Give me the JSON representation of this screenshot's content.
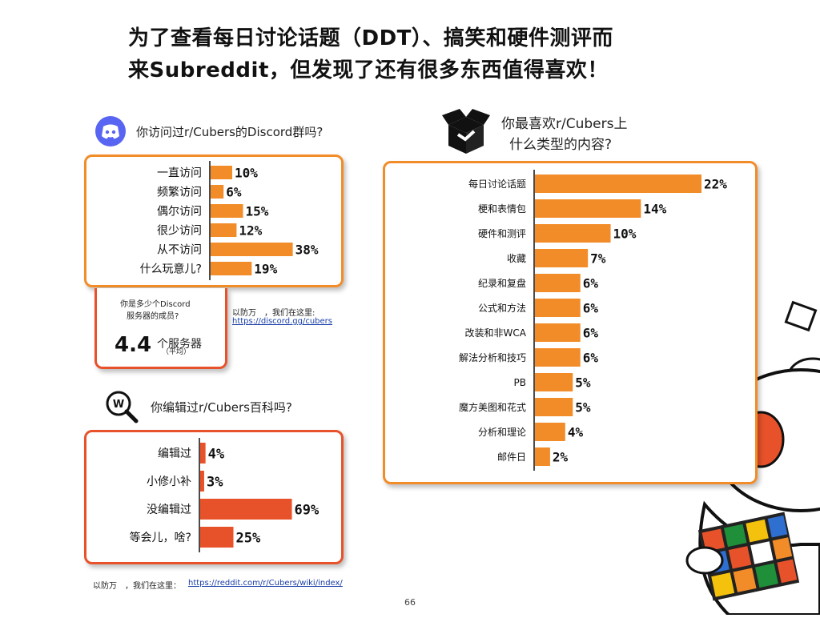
{
  "title": {
    "line1": "为了查看每日讨论话题（DDT）、搞笑和硬件测评而",
    "line2": "来Subreddit，但发现了还有很多东西值得喜欢！"
  },
  "discord": {
    "question": "你访问过r/Cubers的Discord群吗?",
    "servers_question_l1": "你是多少个Discord",
    "servers_question_l2": "服务器的成员?",
    "servers_value": "4.4",
    "servers_unit": "个服务器",
    "servers_note": "（平均）",
    "link_prefix": "以防万　，我们在这里:",
    "link": "https://discord.gg/cubers"
  },
  "wiki": {
    "question": "你编辑过r/Cubers百科吗?",
    "link_prefix": "以防万　，我们在这里：",
    "link": "https://reddit.com/r/Cubers/wiki/index/"
  },
  "content": {
    "question_l1": "你最喜欢r/Cubers上",
    "question_l2": "什么类型的内容?"
  },
  "page_number": "66",
  "colors": {
    "orange": "#f28c28",
    "red": "#e8522a"
  },
  "icons": [
    "discord-icon",
    "wiki-search-icon",
    "box-icon",
    "reddit-mascot-icon"
  ],
  "chart_data": [
    {
      "type": "bar",
      "orientation": "horizontal",
      "categories": [
        "一直访问",
        "频繁访问",
        "偶尔访问",
        "很少访问",
        "从不访问",
        "什么玩意儿?"
      ],
      "values": [
        10,
        6,
        15,
        12,
        38,
        19
      ],
      "labels": [
        "10%",
        "6%",
        "15%",
        "12%",
        "38%",
        "19%"
      ],
      "xlim": [
        0,
        40
      ]
    },
    {
      "type": "bar",
      "orientation": "horizontal",
      "categories": [
        "编辑过",
        "小修小补",
        "没编辑过",
        "等会儿，啥?"
      ],
      "values": [
        4,
        3,
        69,
        25
      ],
      "labels": [
        "4%",
        "3%",
        "69%",
        "25%"
      ],
      "xlim": [
        0,
        100
      ]
    },
    {
      "type": "bar",
      "orientation": "horizontal",
      "categories": [
        "每日讨论话题",
        "梗和表情包",
        "硬件和测评",
        "收藏",
        "纪录和复盘",
        "公式和方法",
        "改装和非WCA",
        "解法分析和技巧",
        "PB",
        "魔方美图和花式",
        "分析和理论",
        "邮件日"
      ],
      "values": [
        22,
        14,
        10,
        7,
        6,
        6,
        6,
        6,
        5,
        5,
        4,
        2
      ],
      "labels": [
        "22%",
        "14%",
        "10%",
        "7%",
        "6%",
        "6%",
        "6%",
        "6%",
        "5%",
        "5%",
        "4%",
        "2%"
      ],
      "xlim": [
        0,
        22
      ]
    }
  ]
}
